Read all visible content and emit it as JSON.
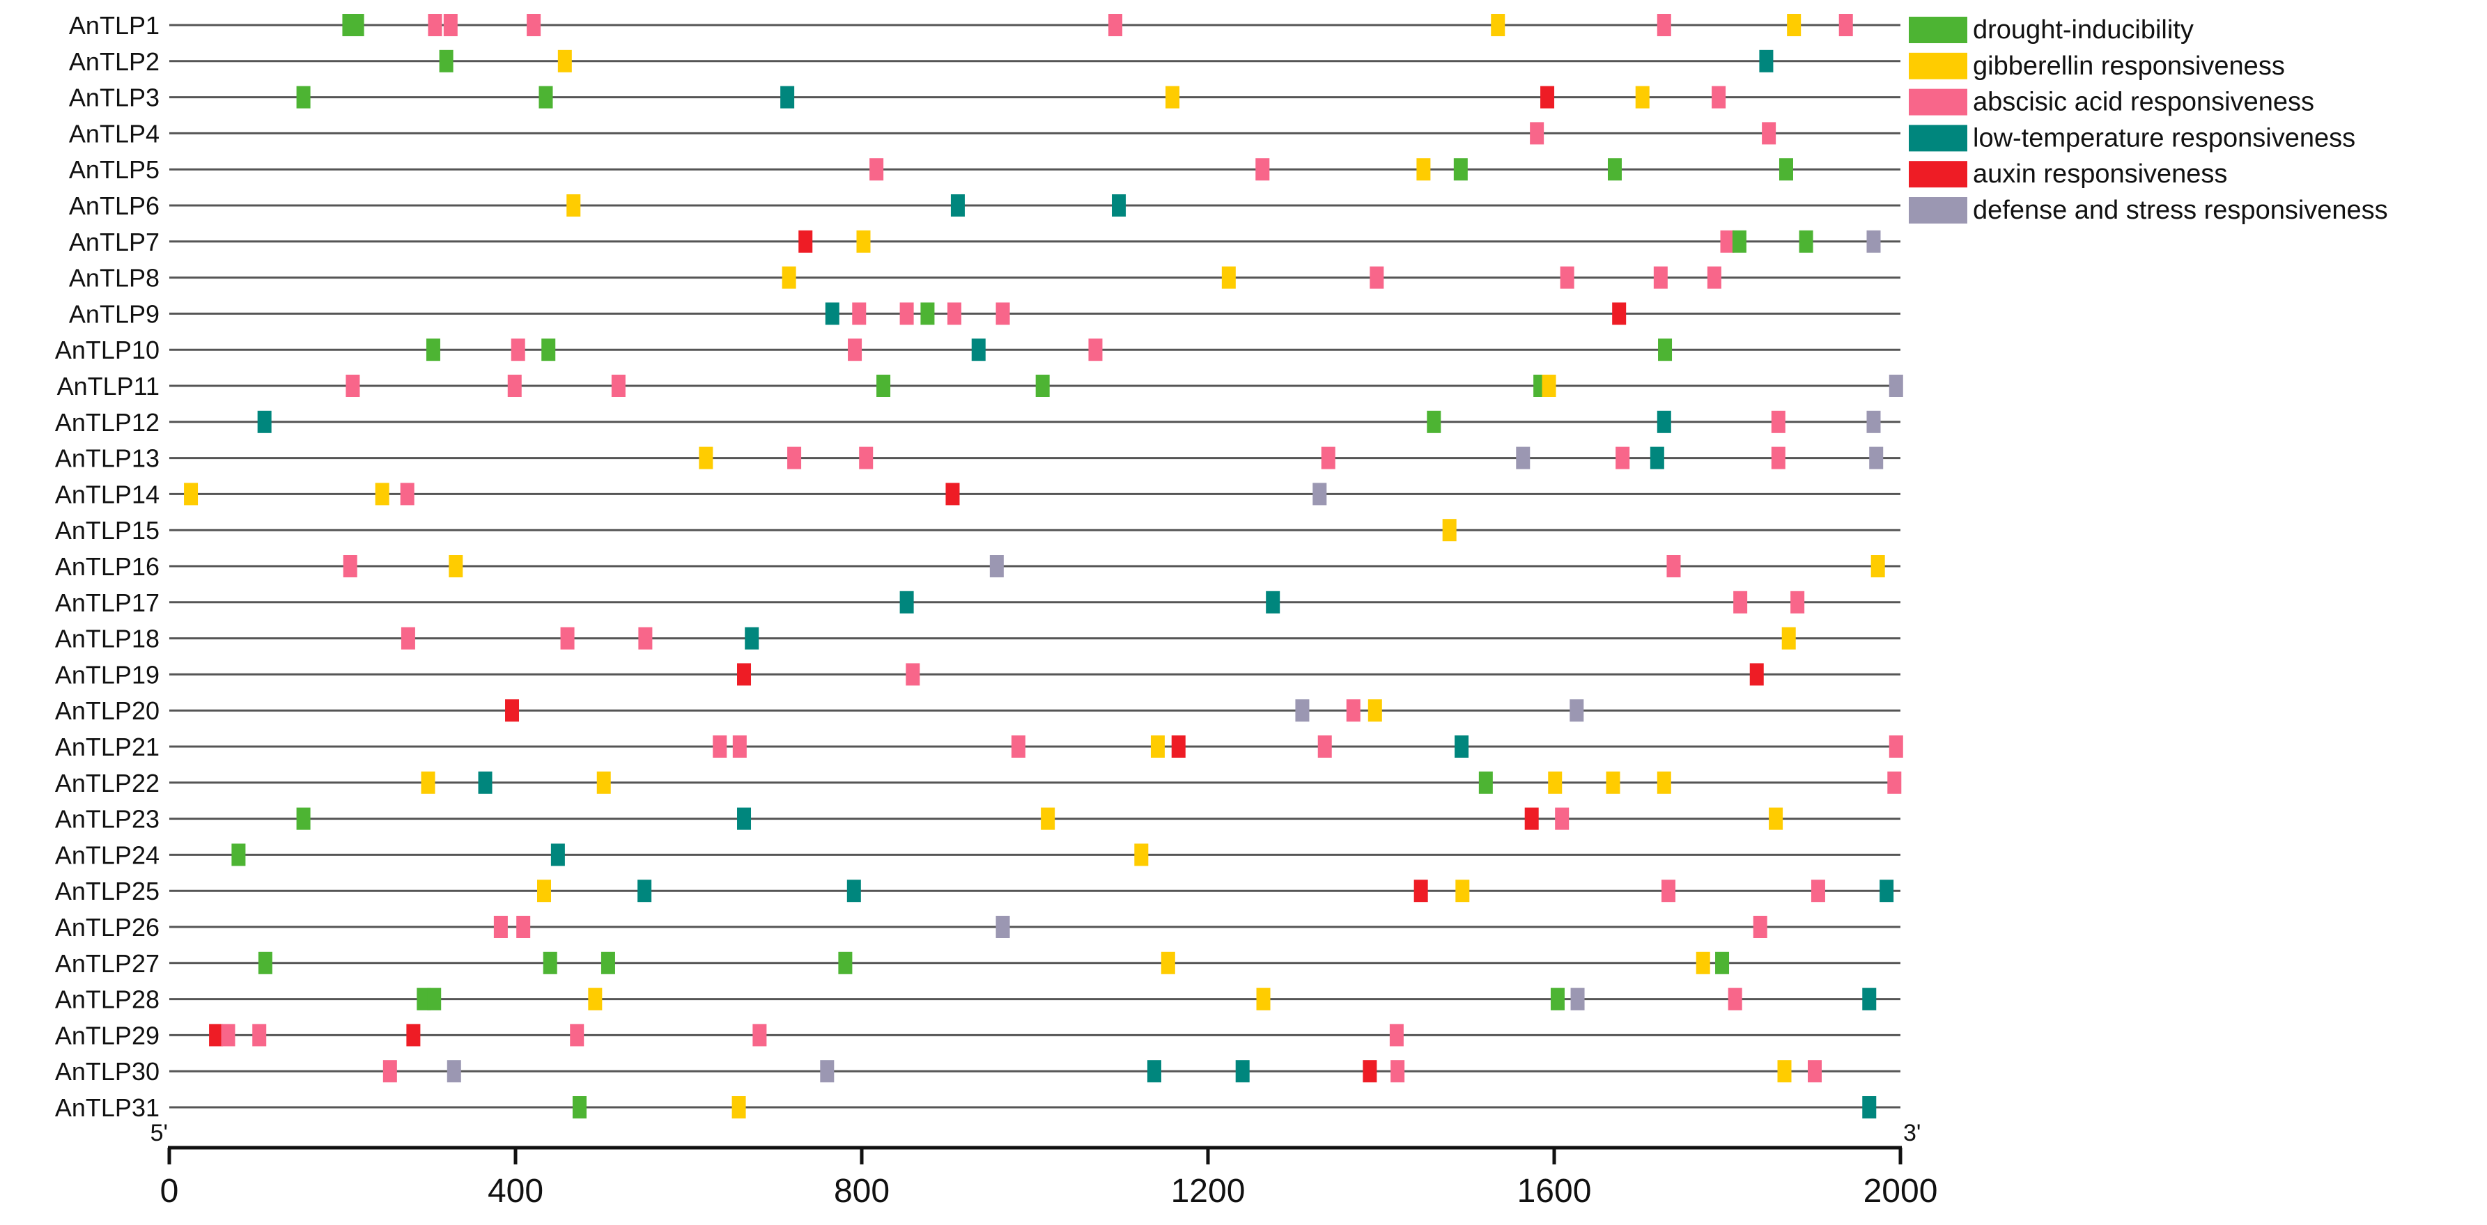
{
  "chart_data": {
    "type": "feature-map",
    "xlim": [
      0,
      2000
    ],
    "x_ticks": [
      0,
      400,
      800,
      1200,
      1600,
      2000
    ],
    "tick_labels": [
      "0",
      "400",
      "800",
      "1200",
      "1600",
      "2000"
    ],
    "end_labels": {
      "left": "5'",
      "right": "3'"
    },
    "legend_position": "top-right",
    "categories": [
      {
        "key": "drought",
        "label": "drought-inducibility",
        "color": "#4DB433"
      },
      {
        "key": "gibberellin",
        "label": "gibberellin responsiveness",
        "color": "#FFCC00"
      },
      {
        "key": "abscisic",
        "label": "abscisic acid responsiveness",
        "color": "#F8668A"
      },
      {
        "key": "lowtemp",
        "label": "low-temperature responsiveness",
        "color": "#00867D"
      },
      {
        "key": "auxin",
        "label": "auxin responsiveness",
        "color": "#EE1C25"
      },
      {
        "key": "defense",
        "label": "defense and stress responsiveness",
        "color": "#9B97B2"
      }
    ],
    "genes": [
      {
        "name": "AnTLP1",
        "elements": [
          [
            "drought",
            208
          ],
          [
            "drought",
            217
          ],
          [
            "abscisic",
            307
          ],
          [
            "abscisic",
            325
          ],
          [
            "abscisic",
            421
          ],
          [
            "abscisic",
            1093
          ],
          [
            "gibberellin",
            1535
          ],
          [
            "abscisic",
            1727
          ],
          [
            "gibberellin",
            1877
          ],
          [
            "abscisic",
            1937
          ]
        ]
      },
      {
        "name": "AnTLP2",
        "elements": [
          [
            "drought",
            320
          ],
          [
            "gibberellin",
            457
          ],
          [
            "lowtemp",
            1845
          ]
        ]
      },
      {
        "name": "AnTLP3",
        "elements": [
          [
            "drought",
            155
          ],
          [
            "drought",
            435
          ],
          [
            "lowtemp",
            714
          ],
          [
            "gibberellin",
            1159
          ],
          [
            "auxin",
            1592
          ],
          [
            "gibberellin",
            1702
          ],
          [
            "abscisic",
            1790
          ]
        ]
      },
      {
        "name": "AnTLP4",
        "elements": [
          [
            "abscisic",
            1580
          ],
          [
            "abscisic",
            1848
          ]
        ]
      },
      {
        "name": "AnTLP5",
        "elements": [
          [
            "abscisic",
            817
          ],
          [
            "abscisic",
            1263
          ],
          [
            "gibberellin",
            1449
          ],
          [
            "drought",
            1492
          ],
          [
            "drought",
            1670
          ],
          [
            "drought",
            1868
          ]
        ]
      },
      {
        "name": "AnTLP6",
        "elements": [
          [
            "gibberellin",
            467
          ],
          [
            "lowtemp",
            911
          ],
          [
            "lowtemp",
            1097
          ]
        ]
      },
      {
        "name": "AnTLP7",
        "elements": [
          [
            "auxin",
            735
          ],
          [
            "gibberellin",
            802
          ],
          [
            "abscisic",
            1800
          ],
          [
            "drought",
            1814
          ],
          [
            "drought",
            1891
          ],
          [
            "defense",
            1969
          ]
        ]
      },
      {
        "name": "AnTLP8",
        "elements": [
          [
            "gibberellin",
            716
          ],
          [
            "gibberellin",
            1224
          ],
          [
            "abscisic",
            1395
          ],
          [
            "abscisic",
            1615
          ],
          [
            "abscisic",
            1723
          ],
          [
            "abscisic",
            1785
          ]
        ]
      },
      {
        "name": "AnTLP9",
        "elements": [
          [
            "lowtemp",
            766
          ],
          [
            "abscisic",
            797
          ],
          [
            "abscisic",
            852
          ],
          [
            "drought",
            876
          ],
          [
            "abscisic",
            907
          ],
          [
            "abscisic",
            963
          ],
          [
            "auxin",
            1675
          ]
        ]
      },
      {
        "name": "AnTLP10",
        "elements": [
          [
            "drought",
            305
          ],
          [
            "abscisic",
            403
          ],
          [
            "drought",
            438
          ],
          [
            "abscisic",
            792
          ],
          [
            "lowtemp",
            935
          ],
          [
            "abscisic",
            1070
          ],
          [
            "drought",
            1728
          ]
        ]
      },
      {
        "name": "AnTLP11",
        "elements": [
          [
            "abscisic",
            212
          ],
          [
            "abscisic",
            399
          ],
          [
            "abscisic",
            519
          ],
          [
            "drought",
            825
          ],
          [
            "drought",
            1009
          ],
          [
            "drought",
            1584
          ],
          [
            "gibberellin",
            1594
          ],
          [
            "defense",
            1995
          ]
        ]
      },
      {
        "name": "AnTLP12",
        "elements": [
          [
            "lowtemp",
            110
          ],
          [
            "drought",
            1461
          ],
          [
            "lowtemp",
            1727
          ],
          [
            "abscisic",
            1859
          ],
          [
            "defense",
            1969
          ]
        ]
      },
      {
        "name": "AnTLP13",
        "elements": [
          [
            "gibberellin",
            620
          ],
          [
            "abscisic",
            722
          ],
          [
            "abscisic",
            805
          ],
          [
            "abscisic",
            1339
          ],
          [
            "defense",
            1564
          ],
          [
            "abscisic",
            1679
          ],
          [
            "lowtemp",
            1719
          ],
          [
            "abscisic",
            1859
          ],
          [
            "defense",
            1972
          ]
        ]
      },
      {
        "name": "AnTLP14",
        "elements": [
          [
            "gibberellin",
            25
          ],
          [
            "gibberellin",
            246
          ],
          [
            "abscisic",
            275
          ],
          [
            "auxin",
            905
          ],
          [
            "defense",
            1329
          ]
        ]
      },
      {
        "name": "AnTLP15",
        "elements": [
          [
            "gibberellin",
            1479
          ]
        ]
      },
      {
        "name": "AnTLP16",
        "elements": [
          [
            "abscisic",
            209
          ],
          [
            "gibberellin",
            331
          ],
          [
            "defense",
            956
          ],
          [
            "abscisic",
            1738
          ],
          [
            "gibberellin",
            1974
          ]
        ]
      },
      {
        "name": "AnTLP17",
        "elements": [
          [
            "lowtemp",
            852
          ],
          [
            "lowtemp",
            1275
          ],
          [
            "abscisic",
            1815
          ],
          [
            "abscisic",
            1881
          ]
        ]
      },
      {
        "name": "AnTLP18",
        "elements": [
          [
            "abscisic",
            276
          ],
          [
            "abscisic",
            460
          ],
          [
            "abscisic",
            550
          ],
          [
            "lowtemp",
            673
          ],
          [
            "gibberellin",
            1871
          ]
        ]
      },
      {
        "name": "AnTLP19",
        "elements": [
          [
            "auxin",
            664
          ],
          [
            "abscisic",
            859
          ],
          [
            "auxin",
            1834
          ]
        ]
      },
      {
        "name": "AnTLP20",
        "elements": [
          [
            "auxin",
            396
          ],
          [
            "defense",
            1309
          ],
          [
            "abscisic",
            1368
          ],
          [
            "gibberellin",
            1393
          ],
          [
            "defense",
            1626
          ]
        ]
      },
      {
        "name": "AnTLP21",
        "elements": [
          [
            "abscisic",
            636
          ],
          [
            "abscisic",
            659
          ],
          [
            "abscisic",
            981
          ],
          [
            "gibberellin",
            1142
          ],
          [
            "auxin",
            1166
          ],
          [
            "abscisic",
            1335
          ],
          [
            "lowtemp",
            1493
          ],
          [
            "abscisic",
            1995
          ]
        ]
      },
      {
        "name": "AnTLP22",
        "elements": [
          [
            "gibberellin",
            299
          ],
          [
            "lowtemp",
            365
          ],
          [
            "gibberellin",
            502
          ],
          [
            "drought",
            1521
          ],
          [
            "gibberellin",
            1601
          ],
          [
            "gibberellin",
            1668
          ],
          [
            "gibberellin",
            1727
          ],
          [
            "abscisic",
            1993
          ]
        ]
      },
      {
        "name": "AnTLP23",
        "elements": [
          [
            "drought",
            155
          ],
          [
            "lowtemp",
            664
          ],
          [
            "gibberellin",
            1015
          ],
          [
            "auxin",
            1574
          ],
          [
            "abscisic",
            1609
          ],
          [
            "gibberellin",
            1856
          ]
        ]
      },
      {
        "name": "AnTLP24",
        "elements": [
          [
            "drought",
            80
          ],
          [
            "lowtemp",
            449
          ],
          [
            "gibberellin",
            1123
          ]
        ]
      },
      {
        "name": "AnTLP25",
        "elements": [
          [
            "gibberellin",
            433
          ],
          [
            "lowtemp",
            549
          ],
          [
            "lowtemp",
            791
          ],
          [
            "auxin",
            1446
          ],
          [
            "gibberellin",
            1494
          ],
          [
            "abscisic",
            1732
          ],
          [
            "abscisic",
            1905
          ],
          [
            "lowtemp",
            1984
          ]
        ]
      },
      {
        "name": "AnTLP26",
        "elements": [
          [
            "abscisic",
            383
          ],
          [
            "abscisic",
            409
          ],
          [
            "defense",
            963
          ],
          [
            "abscisic",
            1838
          ]
        ]
      },
      {
        "name": "AnTLP27",
        "elements": [
          [
            "drought",
            111
          ],
          [
            "drought",
            440
          ],
          [
            "drought",
            507
          ],
          [
            "drought",
            781
          ],
          [
            "gibberellin",
            1154
          ],
          [
            "gibberellin",
            1772
          ],
          [
            "drought",
            1794
          ]
        ]
      },
      {
        "name": "AnTLP28",
        "elements": [
          [
            "drought",
            294
          ],
          [
            "drought",
            306
          ],
          [
            "gibberellin",
            492
          ],
          [
            "gibberellin",
            1264
          ],
          [
            "drought",
            1604
          ],
          [
            "defense",
            1627
          ],
          [
            "abscisic",
            1809
          ],
          [
            "lowtemp",
            1964
          ]
        ]
      },
      {
        "name": "AnTLP29",
        "elements": [
          [
            "auxin",
            54
          ],
          [
            "abscisic",
            68
          ],
          [
            "abscisic",
            104
          ],
          [
            "auxin",
            282
          ],
          [
            "abscisic",
            471
          ],
          [
            "abscisic",
            682
          ],
          [
            "abscisic",
            1418
          ]
        ]
      },
      {
        "name": "AnTLP30",
        "elements": [
          [
            "abscisic",
            255
          ],
          [
            "defense",
            329
          ],
          [
            "defense",
            760
          ],
          [
            "lowtemp",
            1138
          ],
          [
            "lowtemp",
            1240
          ],
          [
            "auxin",
            1387
          ],
          [
            "abscisic",
            1419
          ],
          [
            "gibberellin",
            1866
          ],
          [
            "abscisic",
            1901
          ]
        ]
      },
      {
        "name": "AnTLP31",
        "elements": [
          [
            "drought",
            474
          ],
          [
            "gibberellin",
            658
          ],
          [
            "lowtemp",
            1964
          ]
        ]
      }
    ]
  }
}
